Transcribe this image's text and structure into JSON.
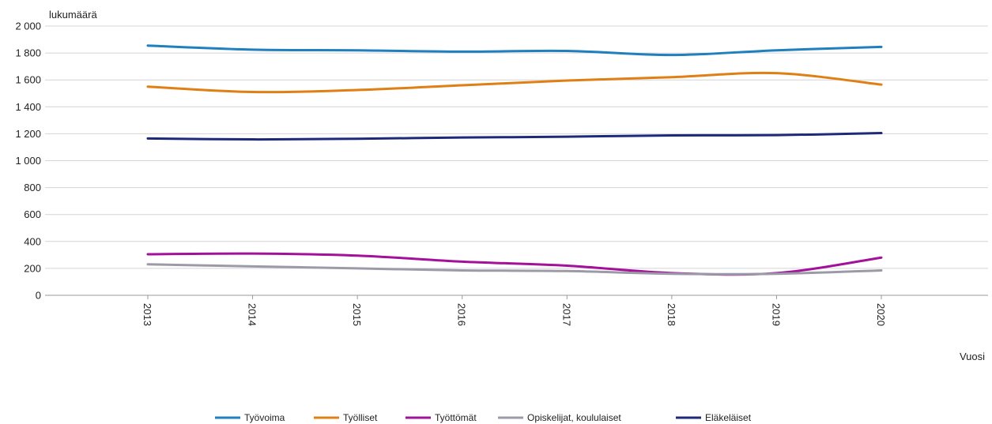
{
  "chart_data": {
    "type": "line",
    "ylabel": "lukumäärä",
    "xlabel": "Vuosi",
    "ylim": [
      0,
      2000
    ],
    "yticks": [
      0,
      200,
      400,
      600,
      800,
      1000,
      1200,
      1400,
      1600,
      1800,
      2000
    ],
    "ytick_labels": [
      "0",
      "200",
      "400",
      "600",
      "800",
      "1 000",
      "1 200",
      "1 400",
      "1 600",
      "1 800",
      "2 000"
    ],
    "categories": [
      "2013",
      "2014",
      "2015",
      "2016",
      "2017",
      "2018",
      "2019",
      "2020"
    ],
    "grid": "horizontal",
    "legend_position": "bottom",
    "series": [
      {
        "name": "Työvoima",
        "color": "#1f7fbf",
        "values": [
          1855,
          1825,
          1820,
          1810,
          1815,
          1785,
          1820,
          1845
        ]
      },
      {
        "name": "Työlliset",
        "color": "#e07f14",
        "values": [
          1550,
          1510,
          1525,
          1560,
          1595,
          1620,
          1650,
          1565
        ]
      },
      {
        "name": "Työttömät",
        "color": "#a3109a",
        "values": [
          305,
          310,
          295,
          250,
          220,
          165,
          165,
          280
        ]
      },
      {
        "name": "Opiskelijat, koululaiset",
        "color": "#9d9aa8",
        "values": [
          230,
          215,
          200,
          185,
          180,
          160,
          160,
          185
        ]
      },
      {
        "name": "Eläkeläiset",
        "color": "#1d2a7a",
        "values": [
          1165,
          1158,
          1163,
          1172,
          1178,
          1188,
          1190,
          1205
        ]
      }
    ]
  }
}
